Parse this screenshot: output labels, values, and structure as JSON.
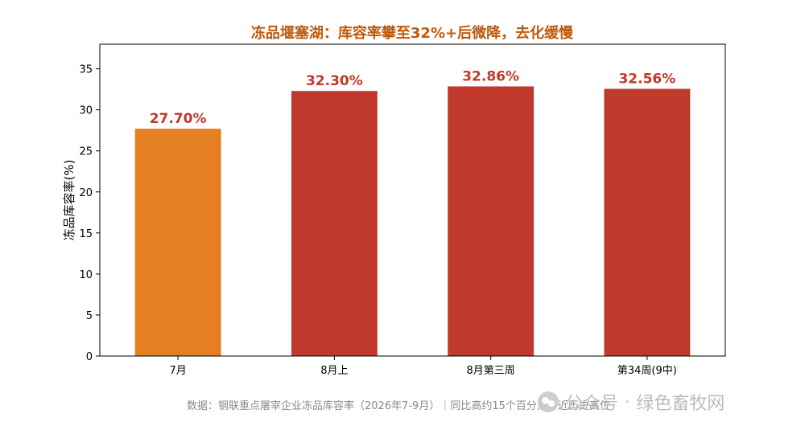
{
  "chart_data": {
    "type": "bar",
    "title": "冻品堰塞湖：库容率攀至32%+后微降，去化缓慢",
    "xlabel": "",
    "ylabel": "冻品库容率(%)",
    "categories": [
      "7月",
      "8月上",
      "8月第三周",
      "第34周(9中)"
    ],
    "values": [
      27.7,
      32.3,
      32.86,
      32.56
    ],
    "data_labels": [
      "27.70%",
      "32.30%",
      "32.86%",
      "32.56%"
    ],
    "bar_colors": [
      "#e67e22",
      "#c0392b",
      "#c0392b",
      "#c0392b"
    ],
    "label_color": "#c0392b",
    "title_color": "#c0590b",
    "ylim": [
      0,
      38
    ],
    "yticks": [
      0,
      5,
      10,
      15,
      20,
      25,
      30,
      35
    ],
    "grid": false,
    "legend": "none"
  },
  "footer": {
    "source": "数据：钢联重点屠宰企业冻品库容率（2026年7-9月）｜同比高约15个百分点，近历史高位"
  },
  "watermark": {
    "icon": "wechat-icon",
    "text1": "公众号",
    "separator": "·",
    "text2": "绿色畜牧网"
  }
}
